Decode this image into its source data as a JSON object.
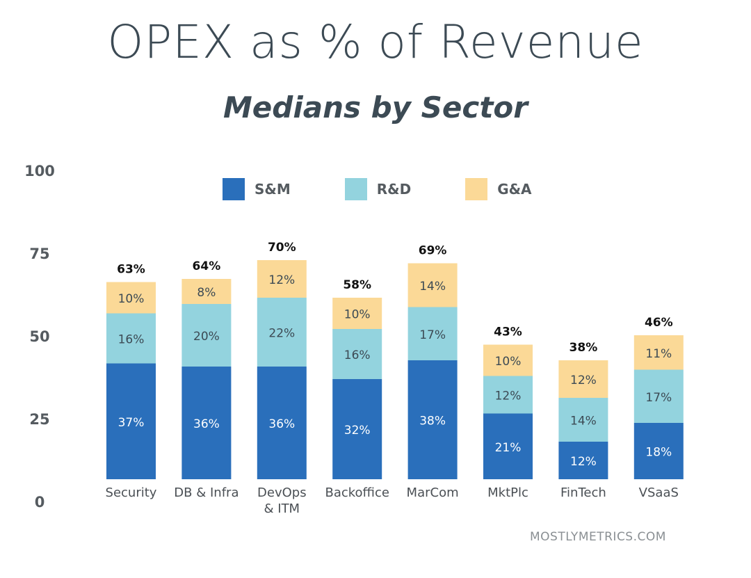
{
  "title": "OPEX as % of Revenue",
  "subtitle": "Medians by Sector",
  "footer": "MOSTLYMETRICS.COM",
  "colors": {
    "sm": "#2a6fbb",
    "rd": "#93d3de",
    "ga": "#fbd997",
    "text": "#3c4a54",
    "label_dark": "#111111"
  },
  "legend": [
    {
      "label": "S&M",
      "color": "#2a6fbb"
    },
    {
      "label": "R&D",
      "color": "#93d3de"
    },
    {
      "label": "G&A",
      "color": "#fbd997"
    }
  ],
  "yaxis": {
    "ticks": [
      "100",
      "75",
      "50",
      "25",
      "0"
    ]
  },
  "chart_data": {
    "type": "bar",
    "stacked": true,
    "title": "OPEX as % of Revenue",
    "subtitle": "Medians by Sector",
    "ylim": [
      0,
      100
    ],
    "yticks": [
      0,
      25,
      50,
      75,
      100
    ],
    "categories": [
      [
        "Security"
      ],
      [
        "DB & Infra"
      ],
      [
        "DevOps",
        "& ITM"
      ],
      [
        "Backoffice"
      ],
      [
        "MarCom"
      ],
      [
        "MktPlc"
      ],
      [
        "FinTech"
      ],
      [
        "VSaaS"
      ]
    ],
    "series": [
      {
        "name": "S&M",
        "values": [
          37,
          36,
          36,
          32,
          38,
          21,
          12,
          18
        ]
      },
      {
        "name": "R&D",
        "values": [
          16,
          20,
          22,
          16,
          17,
          12,
          14,
          17
        ]
      },
      {
        "name": "G&A",
        "values": [
          10,
          8,
          12,
          10,
          14,
          10,
          12,
          11
        ]
      }
    ],
    "segment_labels": [
      [
        "37%",
        "36%",
        "36%",
        "32%",
        "38%",
        "21%",
        "12%",
        "18%"
      ],
      [
        "16%",
        "20%",
        "22%",
        "16%",
        "17%",
        "12%",
        "14%",
        "17%"
      ],
      [
        "10%",
        "8%",
        "12%",
        "10%",
        "14%",
        "10%",
        "12%",
        "11%"
      ]
    ],
    "totals": [
      "63%",
      "64%",
      "70%",
      "58%",
      "69%",
      "43%",
      "38%",
      "46%"
    ],
    "legend_position": "top",
    "grid": false
  }
}
